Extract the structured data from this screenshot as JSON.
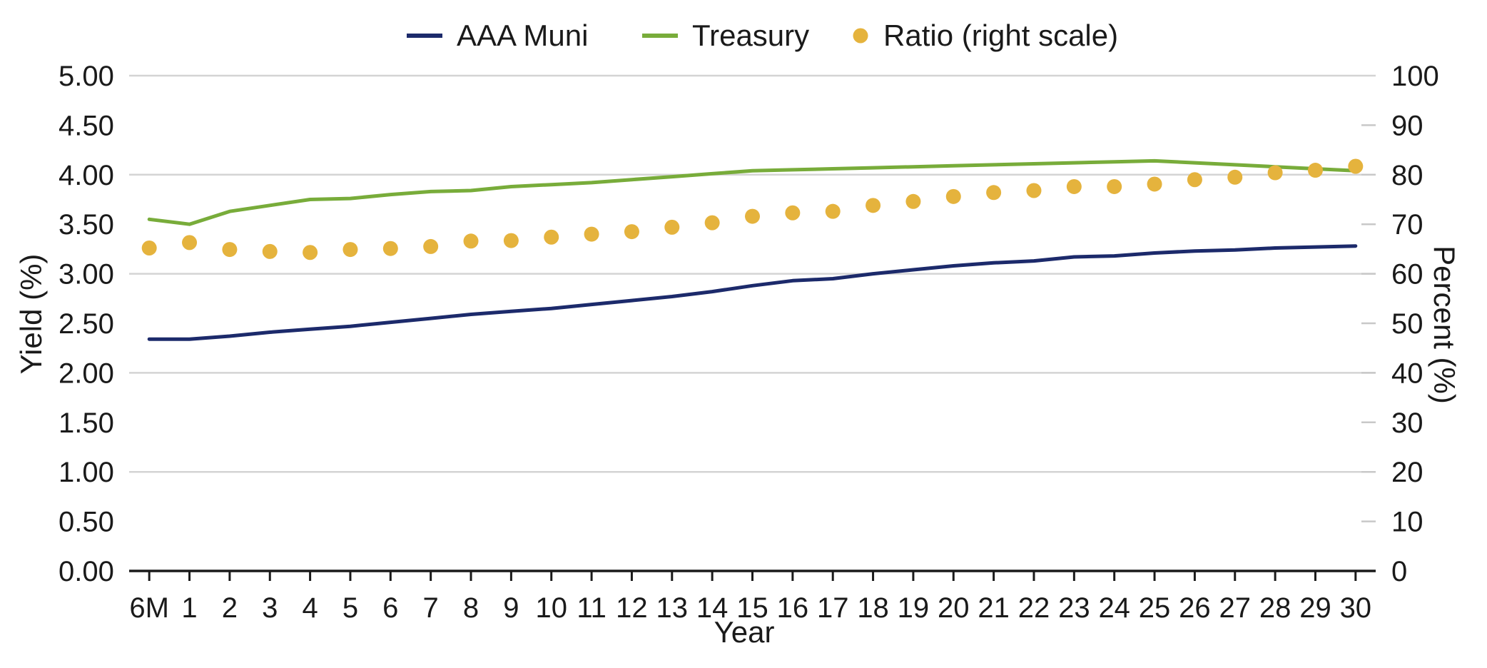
{
  "chart_data": {
    "type": "line",
    "xlabel": "Year",
    "ylabel": "Yield (%)",
    "y2label": "Percent (%)",
    "categories": [
      "6M",
      "1",
      "2",
      "3",
      "4",
      "5",
      "6",
      "7",
      "8",
      "9",
      "10",
      "11",
      "12",
      "13",
      "14",
      "15",
      "16",
      "17",
      "18",
      "19",
      "20",
      "21",
      "22",
      "23",
      "24",
      "25",
      "26",
      "27",
      "28",
      "29",
      "30"
    ],
    "ylim": [
      0,
      5
    ],
    "yticks": [
      "0.00",
      "0.50",
      "1.00",
      "1.50",
      "2.00",
      "2.50",
      "3.00",
      "3.50",
      "4.00",
      "4.50",
      "5.00"
    ],
    "y2lim": [
      0,
      100
    ],
    "y2ticks": [
      "0",
      "10",
      "20",
      "30",
      "40",
      "50",
      "60",
      "70",
      "80",
      "90",
      "100"
    ],
    "grid": true,
    "legend_position": "top",
    "series": [
      {
        "name": "AAA Muni",
        "type": "line",
        "axis": "left",
        "color": "#1c2a6b",
        "values": [
          2.34,
          2.34,
          2.37,
          2.41,
          2.44,
          2.47,
          2.51,
          2.55,
          2.59,
          2.62,
          2.65,
          2.69,
          2.73,
          2.77,
          2.82,
          2.88,
          2.93,
          2.95,
          3.0,
          3.04,
          3.08,
          3.11,
          3.13,
          3.17,
          3.18,
          3.21,
          3.23,
          3.24,
          3.26,
          3.27,
          3.28
        ]
      },
      {
        "name": "Treasury",
        "type": "line",
        "axis": "left",
        "color": "#78ac3a",
        "values": [
          3.55,
          3.5,
          3.63,
          3.69,
          3.75,
          3.76,
          3.8,
          3.83,
          3.84,
          3.88,
          3.9,
          3.92,
          3.95,
          3.98,
          4.01,
          4.04,
          4.05,
          4.06,
          4.07,
          4.08,
          4.09,
          4.1,
          4.11,
          4.12,
          4.13,
          4.14,
          4.12,
          4.1,
          4.08,
          4.06,
          4.04
        ]
      },
      {
        "name": "Ratio (right scale)",
        "type": "scatter",
        "axis": "right",
        "color": "#e5b33d",
        "values": [
          65.2,
          66.3,
          64.9,
          64.5,
          64.3,
          64.9,
          65.1,
          65.5,
          66.6,
          66.7,
          67.4,
          68.0,
          68.5,
          69.4,
          70.3,
          71.6,
          72.3,
          72.6,
          73.8,
          74.6,
          75.6,
          76.4,
          76.8,
          77.6,
          77.6,
          78.1,
          79.0,
          79.5,
          80.4,
          80.9,
          81.7
        ]
      }
    ]
  }
}
